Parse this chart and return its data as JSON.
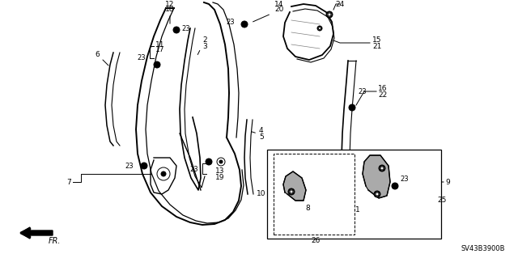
{
  "bg_color": "#ffffff",
  "fig_width": 6.4,
  "fig_height": 3.19,
  "dpi": 100,
  "diagram_code": "SV43B3900B"
}
